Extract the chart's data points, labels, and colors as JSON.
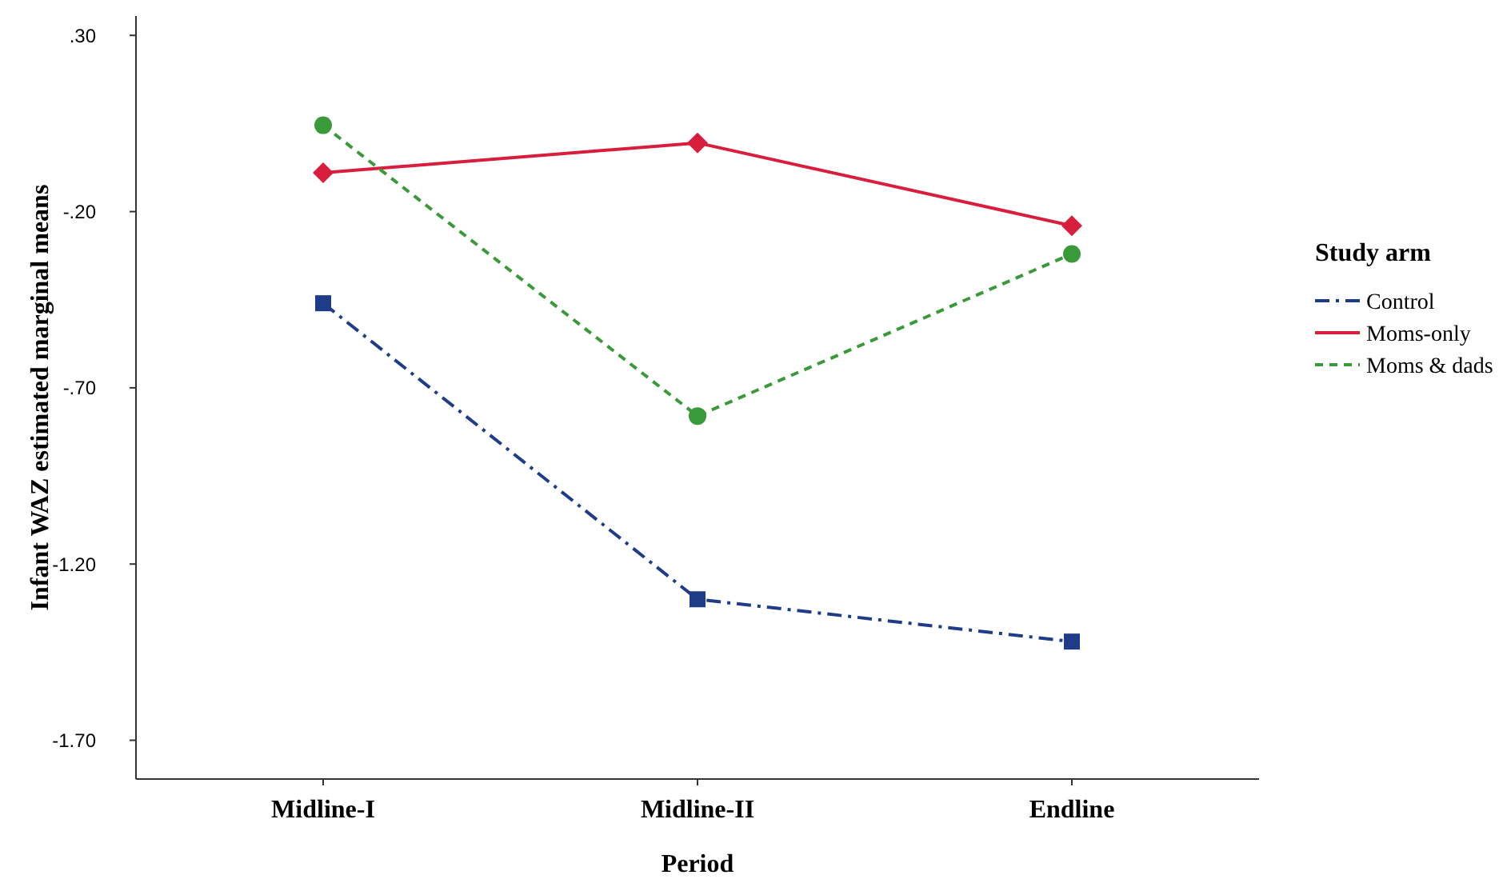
{
  "chart_data": {
    "type": "line",
    "xlabel": "Period",
    "ylabel": "Infant WAZ estimated marginal means",
    "legend_title": "Study arm",
    "legend": "right",
    "categories": [
      "Midline-I",
      "Midline-II",
      "Endline"
    ],
    "ylim": [
      -1.81,
      0.355
    ],
    "yticks": [
      {
        "value": 0.3,
        "label": ".30"
      },
      {
        "value": -0.2,
        "label": "-.20"
      },
      {
        "value": -0.7,
        "label": "-.70"
      },
      {
        "value": -1.2,
        "label": "-1.20"
      },
      {
        "value": -1.7,
        "label": "-1.70"
      }
    ],
    "series": [
      {
        "name": "Control",
        "color": "#1f3c88",
        "values": [
          -0.46,
          -1.3,
          -1.42
        ],
        "line_style": "dashdot",
        "marker": "square"
      },
      {
        "name": "Moms-only",
        "color": "#d81e3c",
        "values": [
          -0.09,
          -0.005,
          -0.24
        ],
        "line_style": "solid",
        "marker": "diamond"
      },
      {
        "name": "Moms & dads",
        "color": "#3a9a3a",
        "values": [
          0.045,
          -0.78,
          -0.32
        ],
        "line_style": "dashed",
        "marker": "circle"
      }
    ]
  }
}
